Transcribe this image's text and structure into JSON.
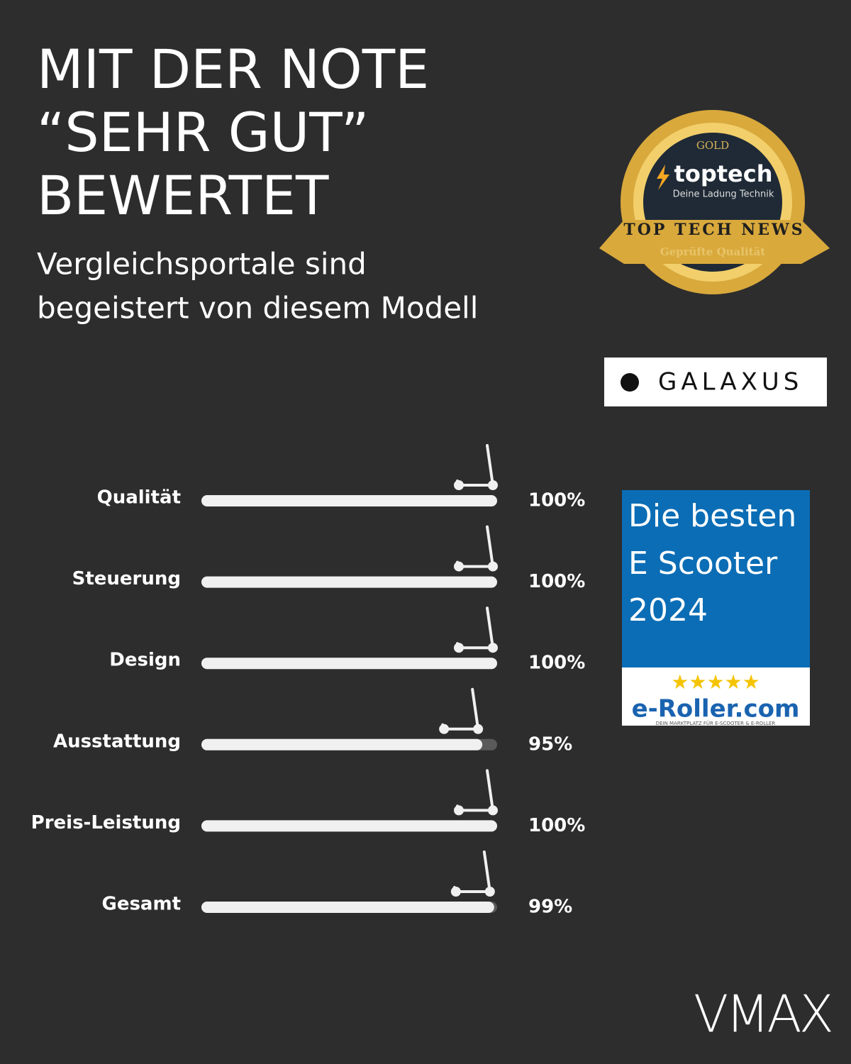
{
  "headline": [
    "MIT DER NOTE",
    "“SEHR GUT”",
    "BEWERTET"
  ],
  "subheadline": [
    "Vergleichsportale sind",
    "begeistert von diesem Modell"
  ],
  "seal": {
    "top": "GOLD",
    "brand": "toptech",
    "tagline": "Deine Ladung Technik",
    "ribbon": "TOP TECH NEWS",
    "bottom": "Geprüfte Qualität"
  },
  "galaxus": "GALAXUS",
  "eroller": {
    "lines": [
      "Die besten",
      "E Scooter",
      "2024"
    ],
    "stars": "★★★★★",
    "brand": "e-Roller.com",
    "tagline": "DEIN MARKTPLATZ FÜR E-SCOOTER & E-ROLLER"
  },
  "logo": "VMAX",
  "chart_data": {
    "type": "bar",
    "orientation": "horizontal",
    "categories": [
      "Qualität",
      "Steuerung",
      "Design",
      "Ausstattung",
      "Preis-Leistung",
      "Gesamt"
    ],
    "values": [
      100,
      100,
      100,
      95,
      100,
      99
    ],
    "value_labels": [
      "100%",
      "100%",
      "100%",
      "95%",
      "100%",
      "99%"
    ],
    "color": "#f0f0f0",
    "track_color": "#5a5a5a",
    "xlim": [
      0,
      100
    ]
  }
}
